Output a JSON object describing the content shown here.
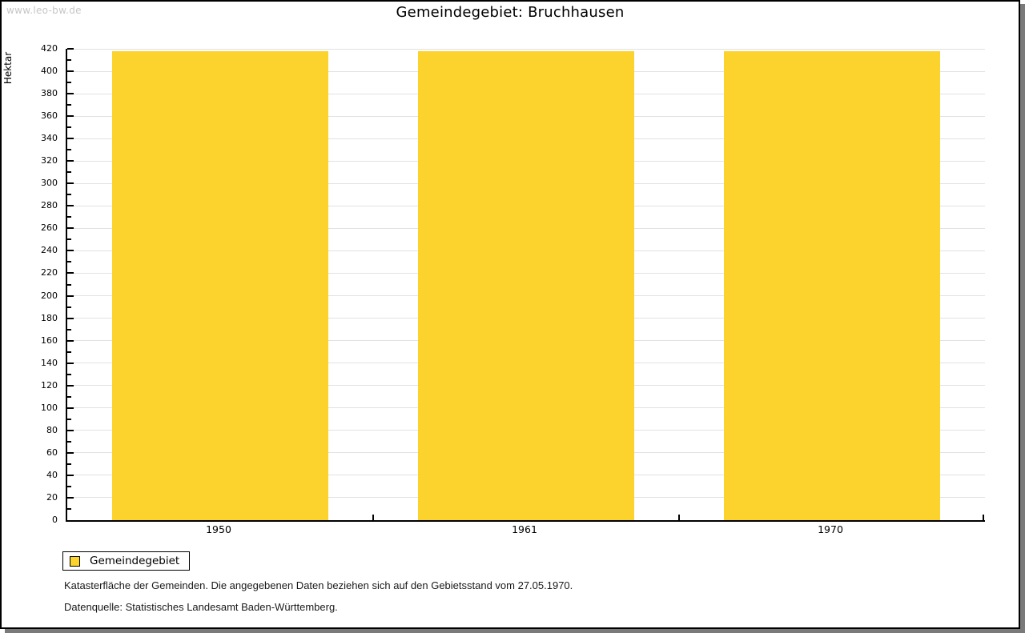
{
  "watermark": "www.leo-bw.de",
  "title": "Gemeindegebiet: Bruchhausen",
  "chart_data": {
    "type": "bar",
    "title": "Gemeindegebiet: Bruchhausen",
    "categories": [
      "1950",
      "1961",
      "1970"
    ],
    "series": [
      {
        "name": "Gemeindegebiet",
        "values": [
          418,
          418,
          418
        ]
      }
    ],
    "xlabel": "",
    "ylabel": "Hektar",
    "ylim": [
      0,
      420
    ],
    "ytick_step": 20,
    "yminor_tick_step": 10,
    "grid": true,
    "legend_position": "bottom-left",
    "bar_color": "#FCD32C"
  },
  "legend": {
    "label": "Gemeindegebiet",
    "swatch_color": "#FCD32C"
  },
  "footer": {
    "line1": "Katasterfläche der Gemeinden. Die angegebenen Daten beziehen sich auf den Gebietsstand vom 27.05.1970.",
    "line2": "Datenquelle: Statistisches Landesamt Baden-Württemberg."
  },
  "colors": {
    "bar": "#FCD32C",
    "axis": "#000000",
    "gridline": "#e2e2e2",
    "watermark_text": "#c6c6c6",
    "frame_shadow": "#7a7a7a"
  }
}
